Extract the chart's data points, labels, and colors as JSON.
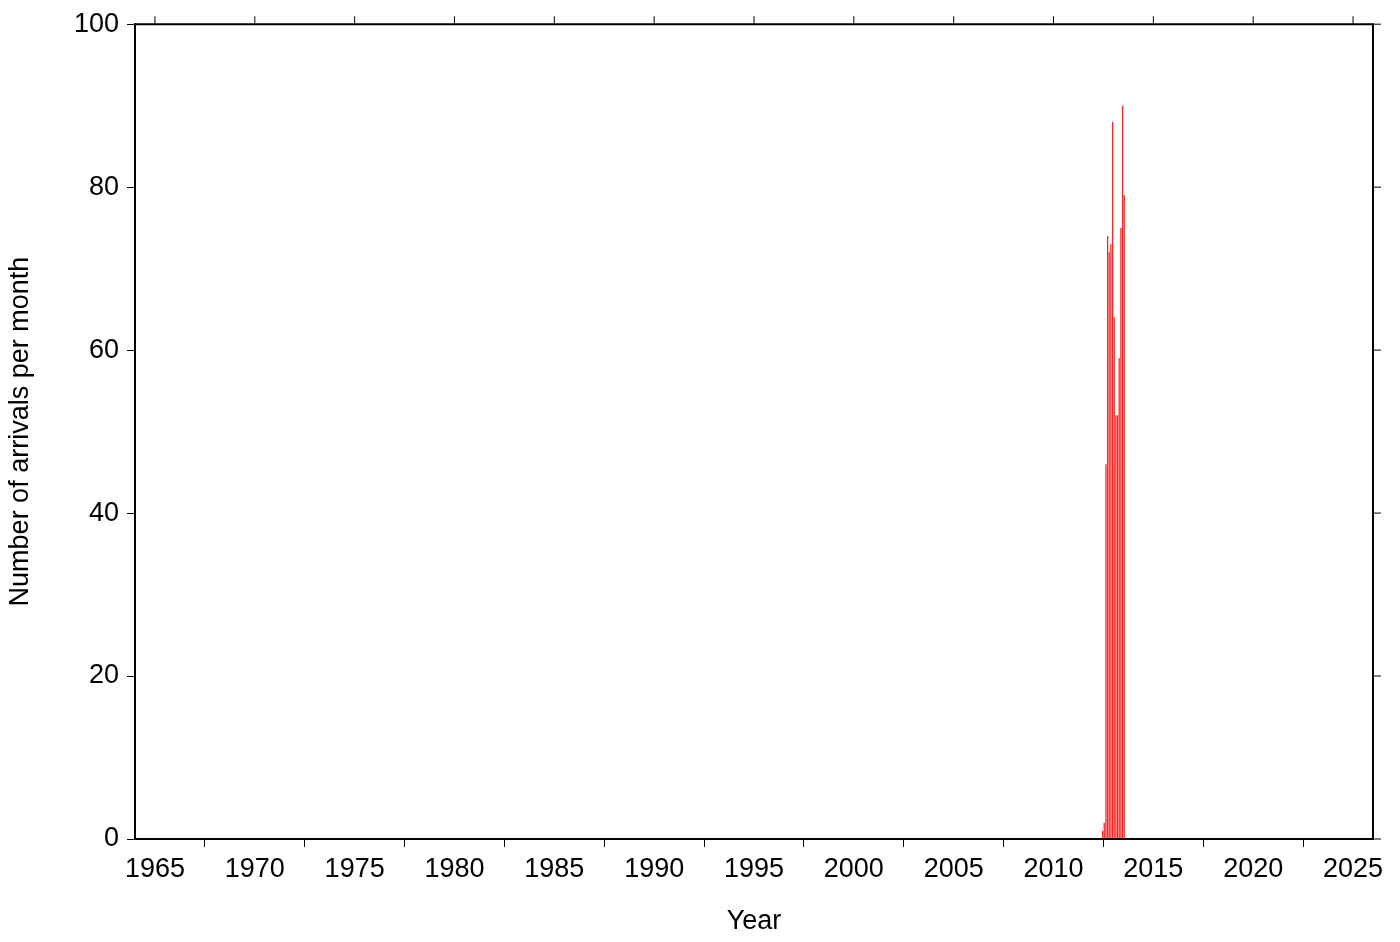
{
  "chart_data": {
    "type": "histogram",
    "xlabel": "Year",
    "ylabel": "Number of arrivals per month",
    "bins": [
      2012.42,
      2012.5,
      2012.58,
      2012.67,
      2012.75,
      2012.83,
      2012.92,
      2013.0,
      2013.08,
      2013.17,
      2013.25,
      2013.33,
      2013.42,
      2013.5,
      2013.58
    ],
    "values": [
      1,
      2,
      46,
      74,
      72,
      73,
      88,
      64,
      52,
      52,
      59,
      75,
      90,
      79
    ],
    "color": "#ff2020",
    "xlim": [
      1964,
      2026
    ],
    "xticks": [
      1965,
      1970,
      1975,
      1980,
      1985,
      1990,
      1995,
      2000,
      2005,
      2010,
      2015,
      2020,
      2025
    ],
    "ylim": [
      0,
      100
    ],
    "yticks": [
      0,
      20,
      40,
      60,
      80,
      100
    ],
    "grid": false,
    "legend": false
  }
}
